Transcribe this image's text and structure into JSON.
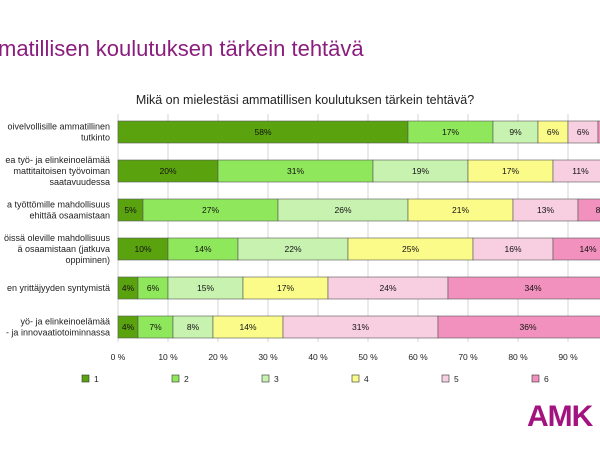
{
  "slide_title": "matillisen koulutuksen tärkein tehtävä",
  "logo_text": "AMK",
  "chart_data": {
    "type": "bar",
    "orientation": "horizontal",
    "stacked": true,
    "title": "Mikä on mielestäsi ammatillisen koulutuksen tärkein tehtävä?",
    "xlim": [
      0,
      100
    ],
    "x_ticks": [
      "0 %",
      "10 %",
      "20 %",
      "30 %",
      "40 %",
      "50 %",
      "60 %",
      "70 %",
      "80 %",
      "90 %"
    ],
    "grid": true,
    "legend_position": "bottom",
    "categories": [
      [
        "oivelvollisille ammatillinen",
        "tutkinto"
      ],
      [
        "ea työ- ja elinkeinoelämää",
        "mattitaitoisen työvoiman",
        "saatavuudessa"
      ],
      [
        "a työttömille mahdollisuus",
        "ehittää osaamistaan"
      ],
      [
        "öissä oleville mahdollisuus",
        "ä osaamistaan (jatkuva",
        "oppiminen)"
      ],
      [
        "en yrittäjyyden syntymistä"
      ],
      [
        "yö- ja elinkeinoelämää",
        "- ja innovaatiotoiminnassa"
      ]
    ],
    "series": [
      {
        "name": "1",
        "color": "#5aa30f",
        "values": [
          58,
          20,
          5,
          10,
          4,
          4
        ],
        "labels": [
          "58%",
          "20%",
          "5%",
          "10%",
          "4%",
          "4%"
        ]
      },
      {
        "name": "2",
        "color": "#8fe85b",
        "values": [
          17,
          31,
          27,
          14,
          6,
          7
        ],
        "labels": [
          "17%",
          "31%",
          "27%",
          "14%",
          "6%",
          "7%"
        ]
      },
      {
        "name": "3",
        "color": "#c8f2b0",
        "values": [
          9,
          19,
          26,
          22,
          15,
          8
        ],
        "labels": [
          "9%",
          "19%",
          "26%",
          "22%",
          "15%",
          "8%"
        ]
      },
      {
        "name": "4",
        "color": "#fbfb8a",
        "values": [
          6,
          17,
          21,
          25,
          17,
          14
        ],
        "labels": [
          "6%",
          "17%",
          "21%",
          "25%",
          "17%",
          "14%"
        ]
      },
      {
        "name": "5",
        "color": "#f8cfe0",
        "values": [
          6,
          11,
          13,
          16,
          24,
          31
        ],
        "labels": [
          "6%",
          "11%",
          "13%",
          "16%",
          "24%",
          "31%"
        ]
      },
      {
        "name": "6",
        "color": "#f291bd",
        "values": [
          4,
          2,
          8,
          14,
          34,
          36
        ],
        "labels": [
          "",
          "",
          "8",
          "14%",
          "34%",
          "36%"
        ]
      }
    ]
  }
}
